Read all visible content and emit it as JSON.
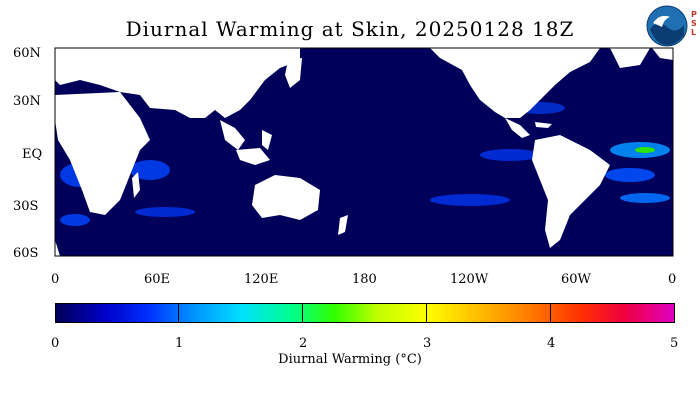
{
  "title": "Diurnal Warming at Skin, 20250128 18Z",
  "logo": {
    "icon": "noaa-logo-icon",
    "side_text": "PSL"
  },
  "map": {
    "projection": "equirectangular",
    "lat_labels": [
      "60N",
      "30N",
      "EQ",
      "30S",
      "60S"
    ],
    "lon_labels": [
      "0",
      "60E",
      "120E",
      "180",
      "120W",
      "60W",
      "0"
    ],
    "ocean_color": "#00005a",
    "land_color": "#ffffff"
  },
  "colorbar": {
    "tick_labels": [
      "0",
      "1",
      "2",
      "3",
      "4",
      "5"
    ],
    "label": "Diurnal Warming (°C)",
    "range": [
      0,
      5
    ]
  }
}
